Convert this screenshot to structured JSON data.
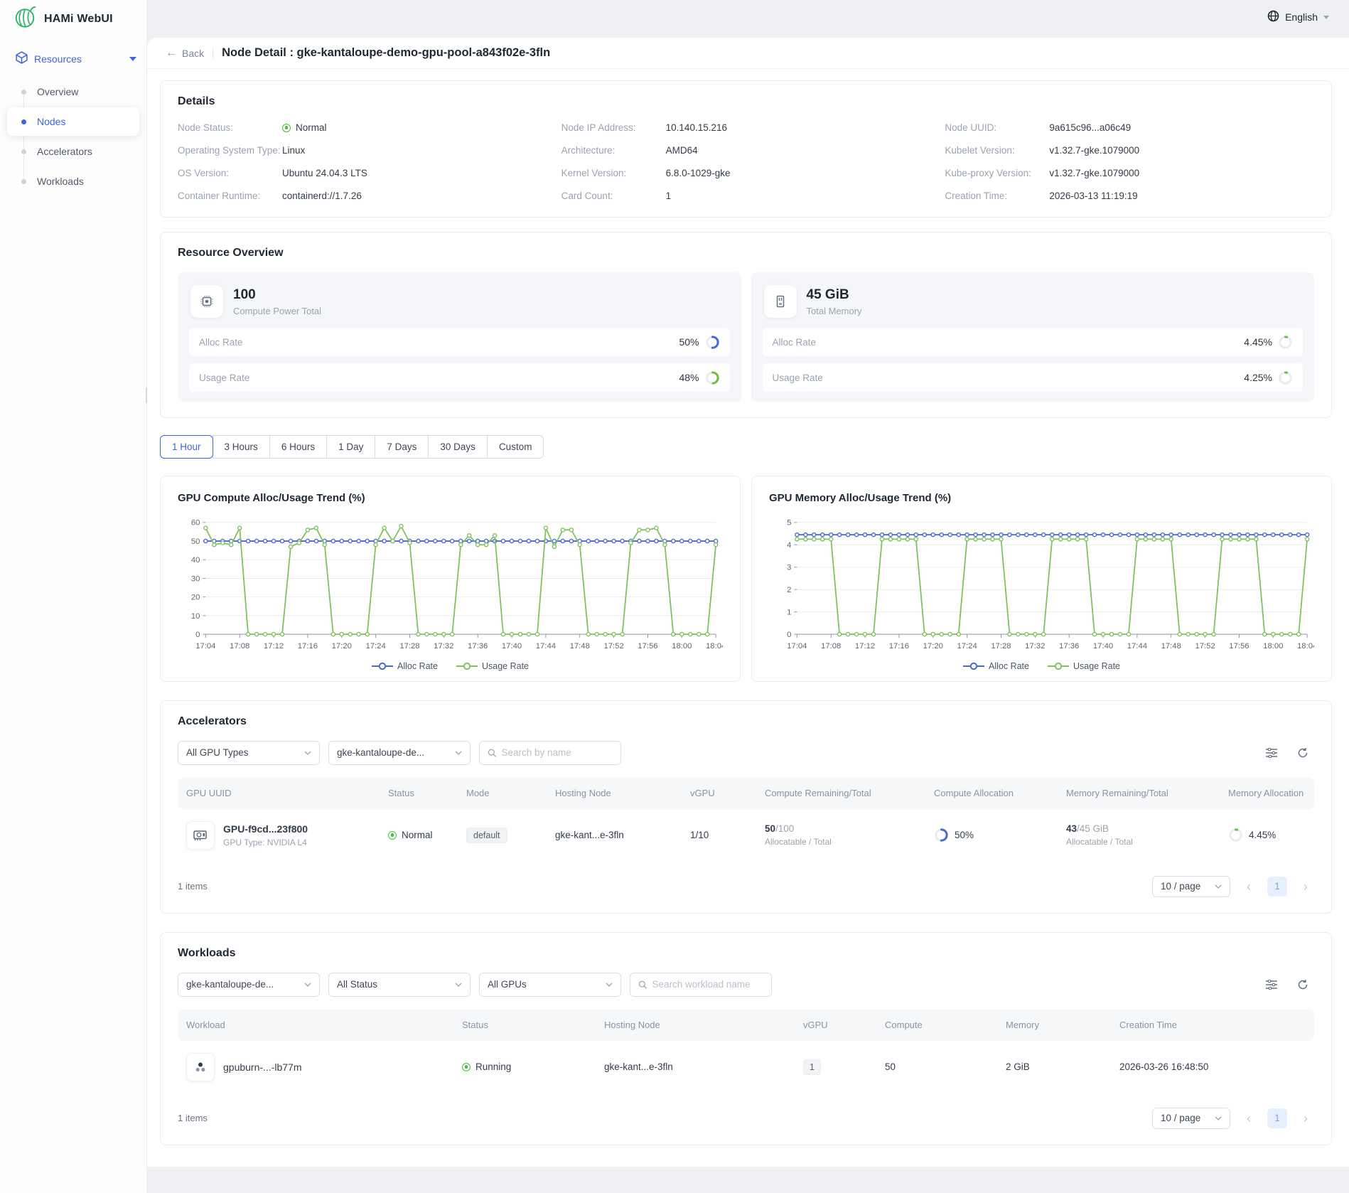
{
  "app": {
    "name": "HAMi WebUI",
    "language": "English"
  },
  "sidebar": {
    "section_label": "Resources",
    "items": [
      {
        "label": "Overview",
        "active": false
      },
      {
        "label": "Nodes",
        "active": true
      },
      {
        "label": "Accelerators",
        "active": false
      },
      {
        "label": "Workloads",
        "active": false
      }
    ]
  },
  "page": {
    "back_label": "Back",
    "title": "Node Detail : gke-kantaloupe-demo-gpu-pool-a843f02e-3fln"
  },
  "details": {
    "title": "Details",
    "fields": [
      {
        "label": "Node Status:",
        "value": "Normal"
      },
      {
        "label": "Node IP Address:",
        "value": "10.140.15.216"
      },
      {
        "label": "Node UUID:",
        "value": "9a615c96...a06c49"
      },
      {
        "label": "Operating System Type:",
        "value": "Linux"
      },
      {
        "label": "Architecture:",
        "value": "AMD64"
      },
      {
        "label": "Kubelet Version:",
        "value": "v1.32.7-gke.1079000"
      },
      {
        "label": "OS Version:",
        "value": "Ubuntu 24.04.3 LTS"
      },
      {
        "label": "Kernel Version:",
        "value": "6.8.0-1029-gke"
      },
      {
        "label": "Kube-proxy Version:",
        "value": "v1.32.7-gke.1079000"
      },
      {
        "label": "Container Runtime:",
        "value": "containerd://1.7.26"
      },
      {
        "label": "Card Count:",
        "value": "1"
      },
      {
        "label": "Creation Time:",
        "value": "2026-03-13 11:19:19"
      }
    ]
  },
  "resource_overview": {
    "title": "Resource Overview",
    "compute": {
      "value": "100",
      "caption": "Compute Power Total",
      "rows": [
        {
          "label": "Alloc Rate",
          "display": "50%",
          "percent": 50,
          "color": "#4a69cf"
        },
        {
          "label": "Usage Rate",
          "display": "48%",
          "percent": 48,
          "color": "#6cbf4a"
        }
      ]
    },
    "memory": {
      "value": "45 GiB",
      "caption": "Total Memory",
      "rows": [
        {
          "label": "Alloc Rate",
          "display": "4.45%",
          "percent": 4.45,
          "color": "#6cbf4a"
        },
        {
          "label": "Usage Rate",
          "display": "4.25%",
          "percent": 4.25,
          "color": "#6cbf4a"
        }
      ]
    }
  },
  "time_tabs": {
    "active_index": 0,
    "items": [
      "1 Hour",
      "3 Hours",
      "6 Hours",
      "1 Day",
      "7 Days",
      "30 Days",
      "Custom"
    ]
  },
  "chart_data": [
    {
      "type": "line",
      "title": "GPU Compute Alloc/Usage Trend (%)",
      "ylim": [
        0,
        60
      ],
      "yticks": [
        0,
        10,
        20,
        30,
        40,
        50,
        60
      ],
      "x_tick_every": 4,
      "grid": true,
      "legend_position": "bottom",
      "x": [
        "17:04",
        "17:05",
        "17:06",
        "17:07",
        "17:08",
        "17:09",
        "17:10",
        "17:11",
        "17:12",
        "17:13",
        "17:14",
        "17:15",
        "17:16",
        "17:17",
        "17:18",
        "17:19",
        "17:20",
        "17:21",
        "17:22",
        "17:23",
        "17:24",
        "17:25",
        "17:26",
        "17:27",
        "17:28",
        "17:29",
        "17:30",
        "17:31",
        "17:32",
        "17:33",
        "17:34",
        "17:35",
        "17:36",
        "17:37",
        "17:38",
        "17:39",
        "17:40",
        "17:41",
        "17:42",
        "17:43",
        "17:44",
        "17:45",
        "17:46",
        "17:47",
        "17:48",
        "17:49",
        "17:50",
        "17:51",
        "17:52",
        "17:53",
        "17:54",
        "17:55",
        "17:56",
        "17:57",
        "17:58",
        "17:59",
        "18:00",
        "18:01",
        "18:02",
        "18:03",
        "18:04"
      ],
      "series": [
        {
          "name": "Alloc Rate",
          "color": "#4a69cf",
          "values": [
            50,
            50,
            50,
            50,
            50,
            50,
            50,
            50,
            50,
            50,
            50,
            50,
            50,
            50,
            50,
            50,
            50,
            50,
            50,
            50,
            50,
            50,
            50,
            50,
            50,
            50,
            50,
            50,
            50,
            50,
            50,
            50,
            50,
            50,
            50,
            50,
            50,
            50,
            50,
            50,
            50,
            50,
            50,
            50,
            50,
            50,
            50,
            50,
            50,
            50,
            50,
            50,
            50,
            50,
            50,
            50,
            50,
            50,
            50,
            50,
            50
          ]
        },
        {
          "name": "Usage Rate",
          "color": "#7ec15f",
          "values": [
            57,
            48,
            49,
            48,
            57,
            0,
            0,
            0,
            0,
            0,
            47,
            49,
            56,
            57,
            48,
            0,
            0,
            0,
            0,
            0,
            48,
            57,
            50,
            58,
            49,
            0,
            0,
            0,
            0,
            0,
            48,
            53,
            48,
            48,
            53,
            0,
            0,
            0,
            0,
            0,
            57,
            47,
            56,
            56,
            48,
            0,
            0,
            0,
            0,
            0,
            49,
            56,
            56,
            57,
            48,
            0,
            0,
            0,
            0,
            0,
            48
          ]
        }
      ]
    },
    {
      "type": "line",
      "title": "GPU Memory Alloc/Usage Trend (%)",
      "ylim": [
        0,
        5
      ],
      "yticks": [
        0,
        1,
        2,
        3,
        4,
        5
      ],
      "x_tick_every": 4,
      "grid": true,
      "legend_position": "bottom",
      "x": [
        "17:04",
        "17:05",
        "17:06",
        "17:07",
        "17:08",
        "17:09",
        "17:10",
        "17:11",
        "17:12",
        "17:13",
        "17:14",
        "17:15",
        "17:16",
        "17:17",
        "17:18",
        "17:19",
        "17:20",
        "17:21",
        "17:22",
        "17:23",
        "17:24",
        "17:25",
        "17:26",
        "17:27",
        "17:28",
        "17:29",
        "17:30",
        "17:31",
        "17:32",
        "17:33",
        "17:34",
        "17:35",
        "17:36",
        "17:37",
        "17:38",
        "17:39",
        "17:40",
        "17:41",
        "17:42",
        "17:43",
        "17:44",
        "17:45",
        "17:46",
        "17:47",
        "17:48",
        "17:49",
        "17:50",
        "17:51",
        "17:52",
        "17:53",
        "17:54",
        "17:55",
        "17:56",
        "17:57",
        "17:58",
        "17:59",
        "18:00",
        "18:01",
        "18:02",
        "18:03",
        "18:04"
      ],
      "series": [
        {
          "name": "Alloc Rate",
          "color": "#4a69cf",
          "values": [
            4.45,
            4.45,
            4.45,
            4.45,
            4.45,
            4.45,
            4.45,
            4.45,
            4.45,
            4.45,
            4.45,
            4.45,
            4.45,
            4.45,
            4.45,
            4.45,
            4.45,
            4.45,
            4.45,
            4.45,
            4.45,
            4.45,
            4.45,
            4.45,
            4.45,
            4.45,
            4.45,
            4.45,
            4.45,
            4.45,
            4.45,
            4.45,
            4.45,
            4.45,
            4.45,
            4.45,
            4.45,
            4.45,
            4.45,
            4.45,
            4.45,
            4.45,
            4.45,
            4.45,
            4.45,
            4.45,
            4.45,
            4.45,
            4.45,
            4.45,
            4.45,
            4.45,
            4.45,
            4.45,
            4.45,
            4.45,
            4.45,
            4.45,
            4.45,
            4.45,
            4.45
          ]
        },
        {
          "name": "Usage Rate",
          "color": "#7ec15f",
          "values": [
            4.25,
            4.25,
            4.25,
            4.25,
            4.25,
            0,
            0,
            0,
            0,
            0,
            4.25,
            4.25,
            4.25,
            4.25,
            4.25,
            0,
            0,
            0,
            0,
            0,
            4.25,
            4.25,
            4.25,
            4.25,
            4.25,
            0,
            0,
            0,
            0,
            0,
            4.25,
            4.25,
            4.25,
            4.25,
            4.25,
            0,
            0,
            0,
            0,
            0,
            4.25,
            4.25,
            4.25,
            4.25,
            4.25,
            0,
            0,
            0,
            0,
            0,
            4.25,
            4.25,
            4.25,
            4.25,
            4.25,
            0,
            0,
            0,
            0,
            0,
            4.25
          ]
        }
      ]
    }
  ],
  "accelerators": {
    "title": "Accelerators",
    "filters": {
      "gpu_type": "All GPU Types",
      "node": "gke-kantaloupe-de...",
      "search_placeholder": "Search by name"
    },
    "columns": [
      "GPU UUID",
      "Status",
      "Mode",
      "Hosting Node",
      "vGPU",
      "Compute Remaining/Total",
      "Compute Allocation",
      "Memory Remaining/Total",
      "Memory Allocation"
    ],
    "row": {
      "uuid": "GPU-f9cd...23f800",
      "gpu_type": "GPU Type: NVIDIA L4",
      "status": "Normal",
      "mode": "default",
      "hosting_node": "gke-kant...e-3fln",
      "vgpu": "1/10",
      "compute_remaining": "50",
      "compute_total": "/100",
      "compute_caption": "Allocatable / Total",
      "compute_alloc": {
        "display": "50%",
        "percent": 50,
        "color": "#4a69cf"
      },
      "memory_remaining": "43",
      "memory_total": "/45 GiB",
      "memory_caption": "Allocatable / Total",
      "memory_alloc": {
        "display": "4.45%",
        "percent": 4.45,
        "color": "#6cbf4a"
      }
    },
    "footer": {
      "items_text": "1 items",
      "page_size": "10 / page",
      "current_page": "1",
      "prev": "‹",
      "next": "›"
    }
  },
  "workloads": {
    "title": "Workloads",
    "filters": {
      "node": "gke-kantaloupe-de...",
      "status": "All Status",
      "gpus": "All GPUs",
      "search_placeholder": "Search workload name"
    },
    "columns": [
      "Workload",
      "Status",
      "Hosting Node",
      "vGPU",
      "Compute",
      "Memory",
      "Creation Time"
    ],
    "row": {
      "name": "gpuburn-...-lb77m",
      "status": "Running",
      "hosting_node": "gke-kant...e-3fln",
      "vgpu": "1",
      "compute": "50",
      "memory": "2 GiB",
      "creation_time": "2026-03-26 16:48:50"
    },
    "footer": {
      "items_text": "1 items",
      "page_size": "10 / page",
      "current_page": "1",
      "prev": "‹",
      "next": "›"
    }
  }
}
